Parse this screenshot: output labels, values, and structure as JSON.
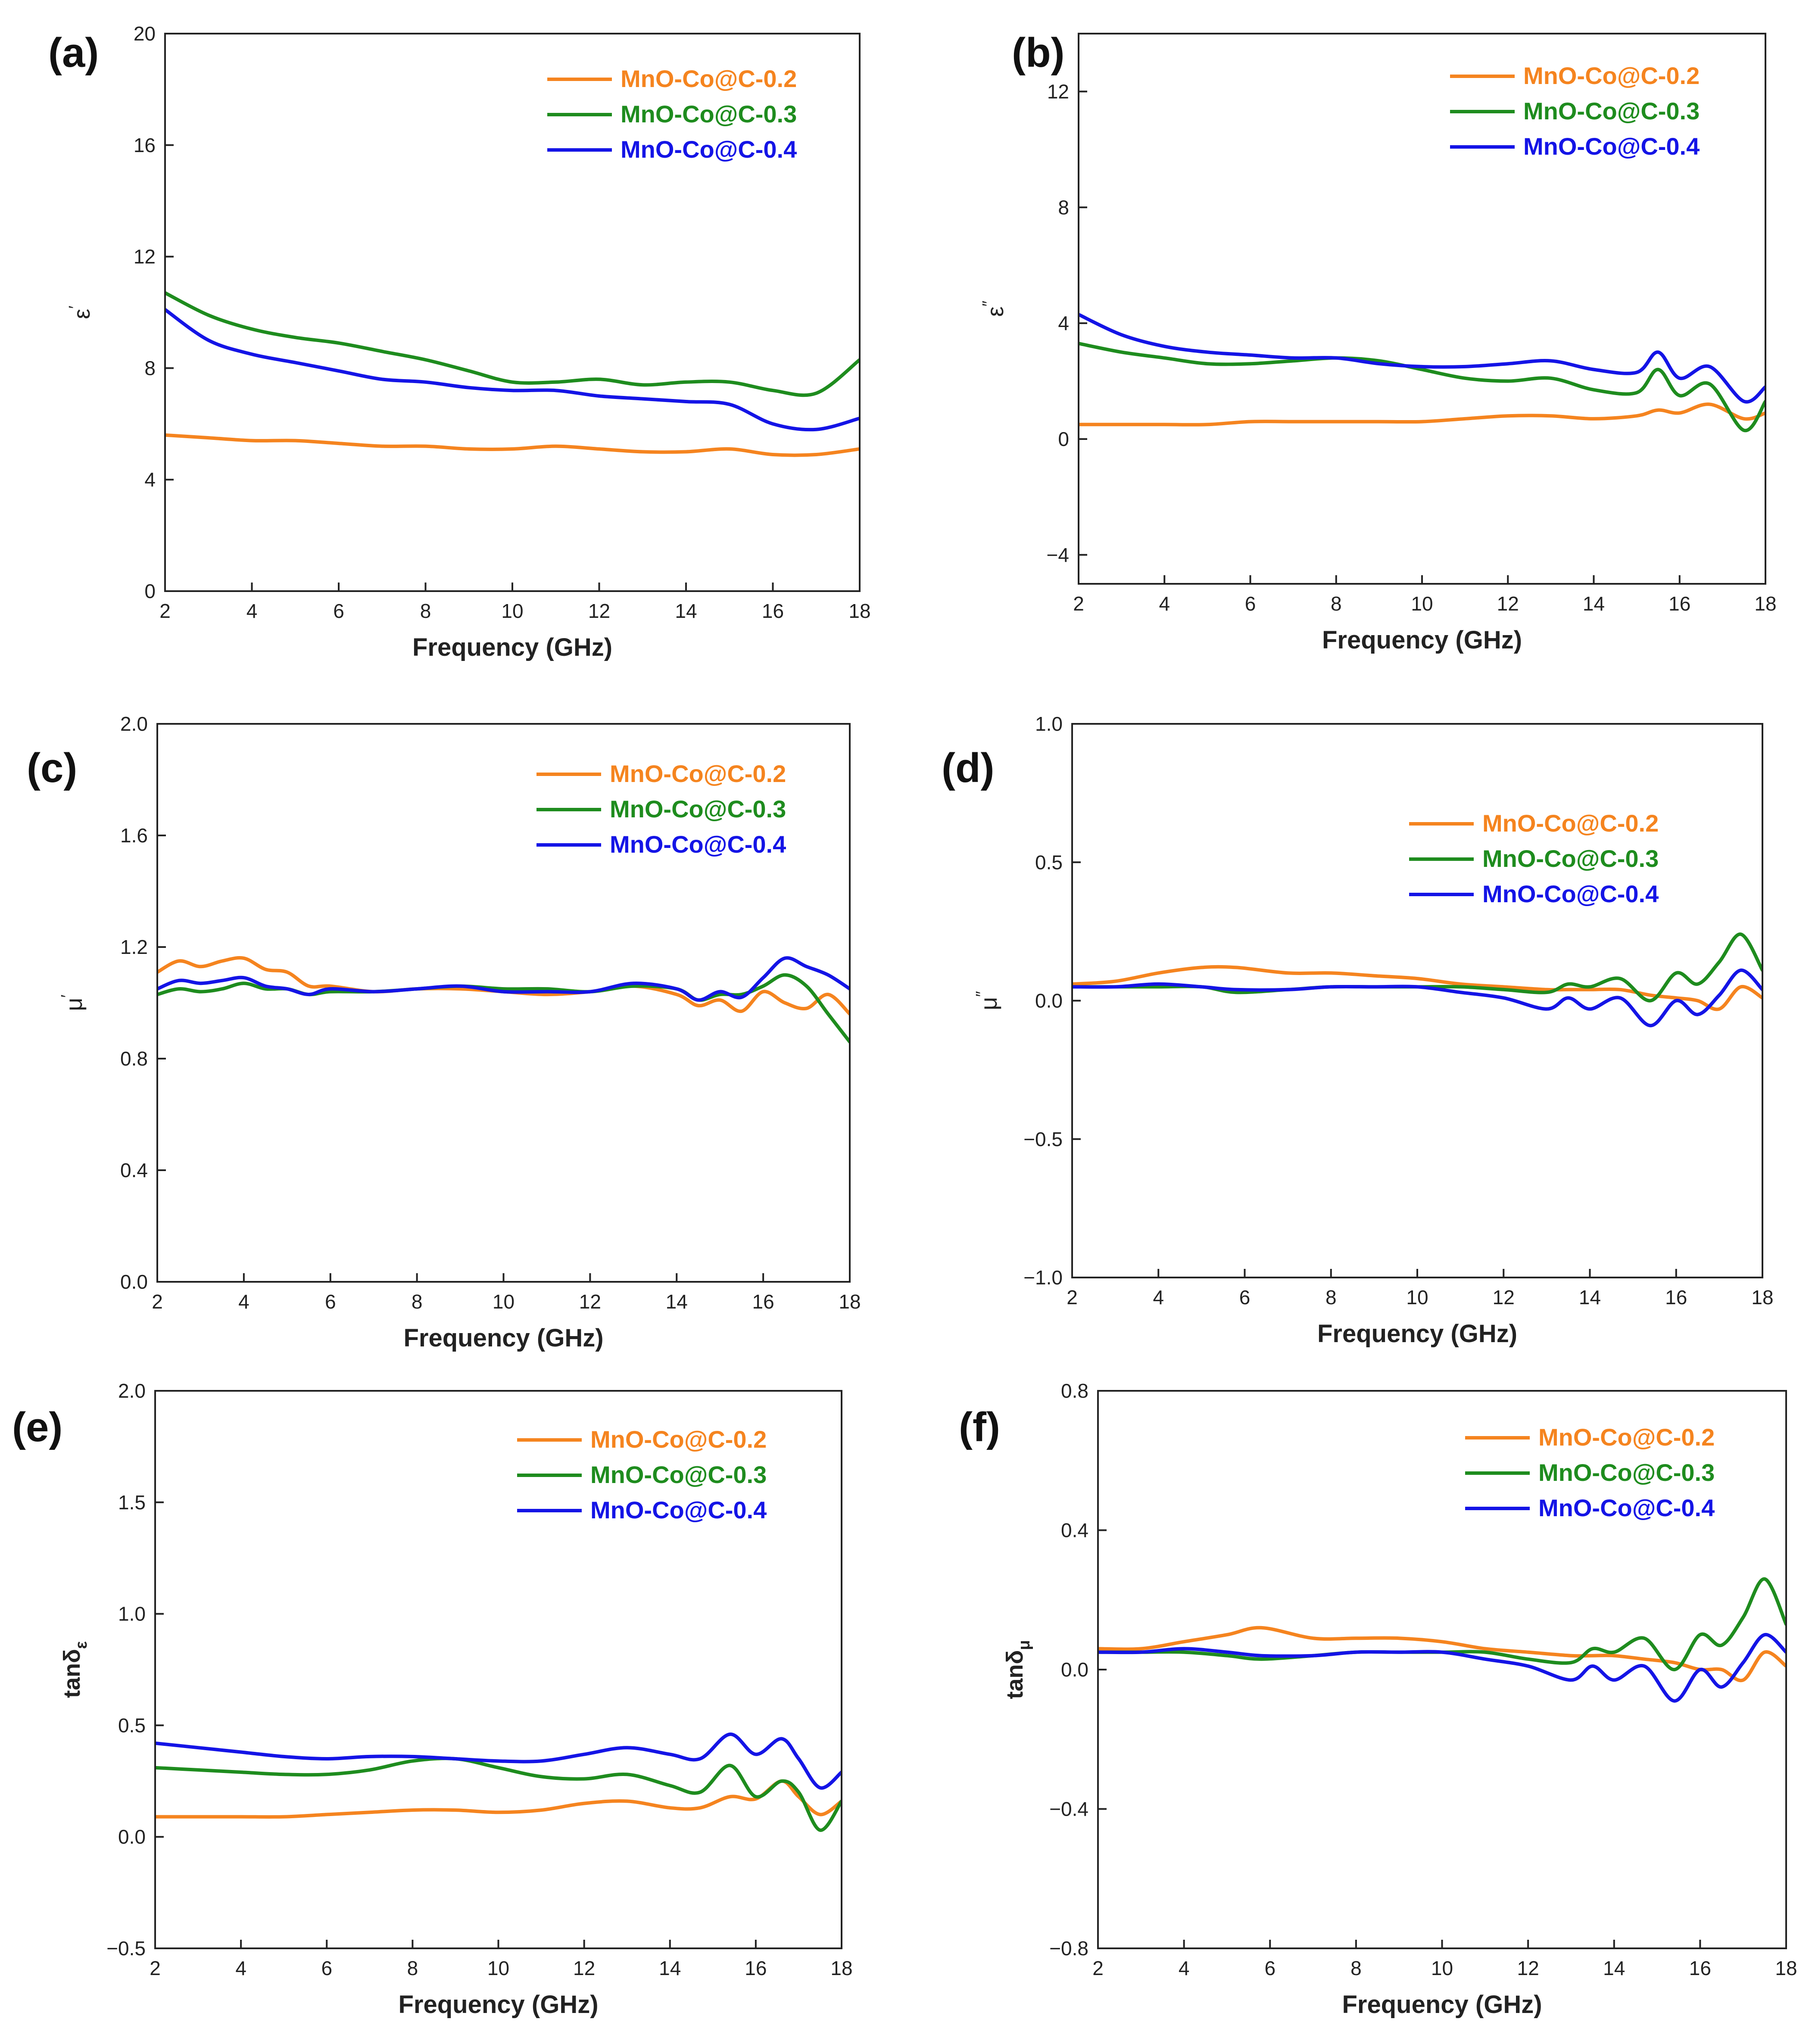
{
  "colors": {
    "s02": "#F5841F",
    "s03": "#1E8C1E",
    "s04": "#1414E6"
  },
  "series_names": [
    "MnO-Co@C-0.2",
    "MnO-Co@C-0.3",
    "MnO-Co@C-0.4"
  ],
  "chart_data": [
    {
      "panel": "(a)",
      "type": "line",
      "xlabel": "Frequency (GHz)",
      "ylabel": "ε",
      "ylabel_sup": "′",
      "xlim": [
        2,
        18
      ],
      "ylim": [
        0,
        20
      ],
      "xticks": [
        2,
        4,
        6,
        8,
        10,
        12,
        14,
        16,
        18
      ],
      "yticks": [
        0,
        4,
        8,
        12,
        16,
        20
      ],
      "x": [
        2,
        3,
        4,
        5,
        6,
        7,
        8,
        9,
        10,
        11,
        12,
        13,
        14,
        15,
        16,
        17,
        18
      ],
      "series": [
        {
          "name": "MnO-Co@C-0.2",
          "values": [
            5.6,
            5.5,
            5.4,
            5.4,
            5.3,
            5.2,
            5.2,
            5.1,
            5.1,
            5.2,
            5.1,
            5.0,
            5.0,
            5.1,
            4.9,
            4.9,
            5.1
          ]
        },
        {
          "name": "MnO-Co@C-0.3",
          "values": [
            10.7,
            9.9,
            9.4,
            9.1,
            8.9,
            8.6,
            8.3,
            7.9,
            7.5,
            7.5,
            7.6,
            7.4,
            7.5,
            7.5,
            7.2,
            7.1,
            8.3
          ]
        },
        {
          "name": "MnO-Co@C-0.4",
          "values": [
            10.1,
            9.0,
            8.5,
            8.2,
            7.9,
            7.6,
            7.5,
            7.3,
            7.2,
            7.2,
            7.0,
            6.9,
            6.8,
            6.7,
            6.0,
            5.8,
            6.2
          ]
        }
      ],
      "legend_position": "top-right"
    },
    {
      "panel": "(b)",
      "type": "line",
      "xlabel": "Frequency (GHz)",
      "ylabel": "ε",
      "ylabel_sup": "″",
      "xlim": [
        2,
        18
      ],
      "ylim": [
        -5,
        14
      ],
      "xticks": [
        2,
        4,
        6,
        8,
        10,
        12,
        14,
        16,
        18
      ],
      "yticks": [
        -4,
        0,
        4,
        8,
        12
      ],
      "x": [
        2,
        3,
        4,
        5,
        6,
        7,
        8,
        9,
        10,
        11,
        12,
        13,
        14,
        15,
        15.5,
        16,
        16.7,
        17.5,
        18
      ],
      "series": [
        {
          "name": "MnO-Co@C-0.2",
          "values": [
            0.5,
            0.5,
            0.5,
            0.5,
            0.6,
            0.6,
            0.6,
            0.6,
            0.6,
            0.7,
            0.8,
            0.8,
            0.7,
            0.8,
            1.0,
            0.9,
            1.2,
            0.7,
            0.9
          ]
        },
        {
          "name": "MnO-Co@C-0.3",
          "values": [
            3.3,
            3.0,
            2.8,
            2.6,
            2.6,
            2.7,
            2.8,
            2.7,
            2.4,
            2.1,
            2.0,
            2.1,
            1.7,
            1.6,
            2.4,
            1.5,
            1.9,
            0.3,
            1.3
          ]
        },
        {
          "name": "MnO-Co@C-0.4",
          "values": [
            4.3,
            3.6,
            3.2,
            3.0,
            2.9,
            2.8,
            2.8,
            2.6,
            2.5,
            2.5,
            2.6,
            2.7,
            2.4,
            2.3,
            3.0,
            2.1,
            2.5,
            1.3,
            1.8
          ]
        }
      ],
      "legend_position": "top-right"
    },
    {
      "panel": "(c)",
      "type": "line",
      "xlabel": "Frequency (GHz)",
      "ylabel": "μ",
      "ylabel_sup": "′",
      "xlim": [
        2,
        18
      ],
      "ylim": [
        0,
        2
      ],
      "xticks": [
        2,
        4,
        6,
        8,
        10,
        12,
        14,
        16,
        18
      ],
      "yticks": [
        0.0,
        0.4,
        0.8,
        1.2,
        1.6,
        2.0
      ],
      "x": [
        2,
        2.5,
        3,
        3.5,
        4,
        4.5,
        5,
        5.5,
        6,
        7,
        8,
        9,
        10,
        11,
        12,
        13,
        14,
        14.5,
        15,
        15.5,
        16,
        16.5,
        17,
        17.5,
        18
      ],
      "series": [
        {
          "name": "MnO-Co@C-0.2",
          "values": [
            1.11,
            1.15,
            1.13,
            1.15,
            1.16,
            1.12,
            1.11,
            1.06,
            1.06,
            1.04,
            1.05,
            1.05,
            1.04,
            1.03,
            1.04,
            1.06,
            1.03,
            0.99,
            1.01,
            0.97,
            1.04,
            1.0,
            0.98,
            1.03,
            0.96
          ]
        },
        {
          "name": "MnO-Co@C-0.3",
          "values": [
            1.03,
            1.05,
            1.04,
            1.05,
            1.07,
            1.05,
            1.05,
            1.03,
            1.04,
            1.04,
            1.05,
            1.06,
            1.05,
            1.05,
            1.04,
            1.06,
            1.05,
            1.01,
            1.03,
            1.03,
            1.06,
            1.1,
            1.06,
            0.96,
            0.86
          ]
        },
        {
          "name": "MnO-Co@C-0.4",
          "values": [
            1.05,
            1.08,
            1.07,
            1.08,
            1.09,
            1.06,
            1.05,
            1.03,
            1.05,
            1.04,
            1.05,
            1.06,
            1.04,
            1.04,
            1.04,
            1.07,
            1.05,
            1.01,
            1.04,
            1.02,
            1.09,
            1.16,
            1.13,
            1.1,
            1.05
          ]
        }
      ],
      "legend_position": "top-right"
    },
    {
      "panel": "(d)",
      "type": "line",
      "xlabel": "Frequency (GHz)",
      "ylabel": "μ",
      "ylabel_sup": "″",
      "xlim": [
        2,
        18
      ],
      "ylim": [
        -1,
        1
      ],
      "xticks": [
        2,
        4,
        6,
        8,
        10,
        12,
        14,
        16,
        18
      ],
      "yticks": [
        -1.0,
        -0.5,
        0.0,
        0.5,
        1.0
      ],
      "x": [
        2,
        3,
        4,
        5,
        5.8,
        7,
        8,
        9,
        10,
        11,
        12,
        13,
        13.5,
        14,
        14.7,
        15.4,
        16,
        16.5,
        17,
        17.5,
        18
      ],
      "series": [
        {
          "name": "MnO-Co@C-0.2",
          "values": [
            0.06,
            0.07,
            0.1,
            0.12,
            0.12,
            0.1,
            0.1,
            0.09,
            0.08,
            0.06,
            0.05,
            0.04,
            0.04,
            0.04,
            0.04,
            0.02,
            0.01,
            0.0,
            -0.03,
            0.05,
            0.01
          ]
        },
        {
          "name": "MnO-Co@C-0.3",
          "values": [
            0.05,
            0.05,
            0.05,
            0.05,
            0.03,
            0.04,
            0.05,
            0.05,
            0.05,
            0.05,
            0.04,
            0.03,
            0.06,
            0.05,
            0.08,
            0.0,
            0.1,
            0.06,
            0.14,
            0.24,
            0.11
          ]
        },
        {
          "name": "MnO-Co@C-0.4",
          "values": [
            0.05,
            0.05,
            0.06,
            0.05,
            0.04,
            0.04,
            0.05,
            0.05,
            0.05,
            0.03,
            0.01,
            -0.03,
            0.01,
            -0.03,
            0.01,
            -0.09,
            0.0,
            -0.05,
            0.02,
            0.11,
            0.04
          ]
        }
      ],
      "legend_position": "top-right"
    },
    {
      "panel": "(e)",
      "type": "line",
      "xlabel": "Frequency (GHz)",
      "ylabel": "tanδ",
      "ylabel_sub": "ε",
      "xlim": [
        2,
        18
      ],
      "ylim": [
        -0.5,
        2.0
      ],
      "xticks": [
        2,
        4,
        6,
        8,
        10,
        12,
        14,
        16,
        18
      ],
      "yticks": [
        -0.5,
        0.0,
        0.5,
        1.0,
        1.5,
        2.0
      ],
      "x": [
        2,
        3,
        4,
        5,
        6,
        7,
        8,
        9,
        10,
        11,
        12,
        13,
        14,
        14.7,
        15.4,
        16,
        16.6,
        17,
        17.5,
        18
      ],
      "series": [
        {
          "name": "MnO-Co@C-0.2",
          "values": [
            0.09,
            0.09,
            0.09,
            0.09,
            0.1,
            0.11,
            0.12,
            0.12,
            0.11,
            0.12,
            0.15,
            0.16,
            0.13,
            0.13,
            0.18,
            0.17,
            0.25,
            0.18,
            0.1,
            0.16
          ]
        },
        {
          "name": "MnO-Co@C-0.3",
          "values": [
            0.31,
            0.3,
            0.29,
            0.28,
            0.28,
            0.3,
            0.34,
            0.35,
            0.31,
            0.27,
            0.26,
            0.28,
            0.23,
            0.2,
            0.32,
            0.18,
            0.25,
            0.2,
            0.03,
            0.16
          ]
        },
        {
          "name": "MnO-Co@C-0.4",
          "values": [
            0.42,
            0.4,
            0.38,
            0.36,
            0.35,
            0.36,
            0.36,
            0.35,
            0.34,
            0.34,
            0.37,
            0.4,
            0.37,
            0.35,
            0.46,
            0.37,
            0.44,
            0.35,
            0.22,
            0.29
          ]
        }
      ],
      "legend_position": "top-right"
    },
    {
      "panel": "(f)",
      "type": "line",
      "xlabel": "Frequency (GHz)",
      "ylabel": "tanδ",
      "ylabel_sub": "μ",
      "xlim": [
        2,
        18
      ],
      "ylim": [
        -0.8,
        0.8
      ],
      "xticks": [
        2,
        4,
        6,
        8,
        10,
        12,
        14,
        16,
        18
      ],
      "yticks": [
        -0.8,
        -0.4,
        0.0,
        0.4,
        0.8
      ],
      "x": [
        2,
        3,
        4,
        5,
        5.8,
        7,
        8,
        9,
        10,
        11,
        12,
        13,
        13.5,
        14,
        14.7,
        15.4,
        16,
        16.5,
        17,
        17.5,
        18
      ],
      "series": [
        {
          "name": "MnO-Co@C-0.2",
          "values": [
            0.06,
            0.06,
            0.08,
            0.1,
            0.12,
            0.09,
            0.09,
            0.09,
            0.08,
            0.06,
            0.05,
            0.04,
            0.04,
            0.04,
            0.03,
            0.02,
            0.0,
            0.0,
            -0.03,
            0.05,
            0.01
          ]
        },
        {
          "name": "MnO-Co@C-0.3",
          "values": [
            0.05,
            0.05,
            0.05,
            0.04,
            0.03,
            0.04,
            0.05,
            0.05,
            0.05,
            0.05,
            0.03,
            0.02,
            0.06,
            0.05,
            0.09,
            0.0,
            0.1,
            0.07,
            0.15,
            0.26,
            0.13
          ]
        },
        {
          "name": "MnO-Co@C-0.4",
          "values": [
            0.05,
            0.05,
            0.06,
            0.05,
            0.04,
            0.04,
            0.05,
            0.05,
            0.05,
            0.03,
            0.01,
            -0.03,
            0.01,
            -0.03,
            0.01,
            -0.09,
            0.0,
            -0.05,
            0.02,
            0.1,
            0.05
          ]
        }
      ],
      "legend_position": "top-right"
    }
  ]
}
